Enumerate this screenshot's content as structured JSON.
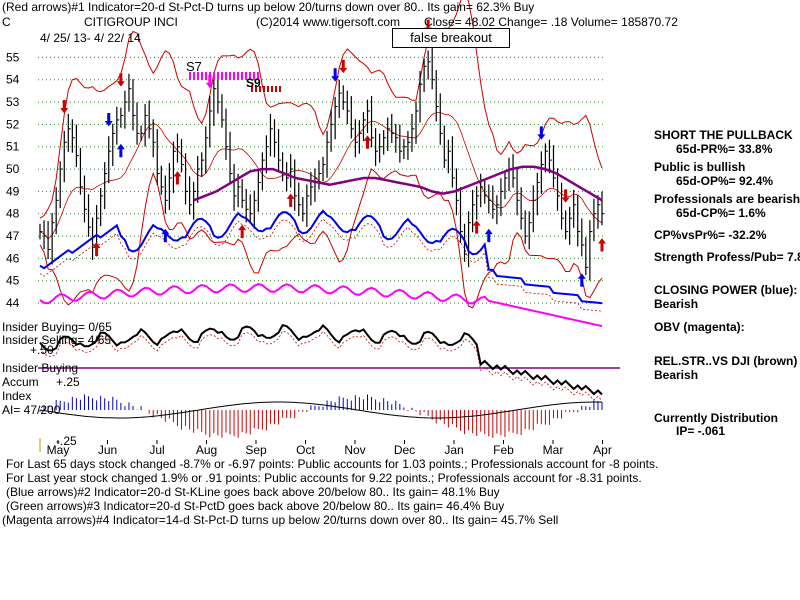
{
  "header": {
    "line1": "(Red arrows)#1 Indicator=20-d St-Pct-D turns up below 20/turns down over 80.. Its gain= 62.3% Buy",
    "symbol": "C",
    "name": "CITIGROUP INCI",
    "copyright": "(C)2014 www.tigersoft.com",
    "quote": "Close= 48.02  Change= .18 Volume= 185870.72",
    "daterange": "4/ 25/ 13-  4/ 22/ 14"
  },
  "annotations": {
    "false_breakout": "false breakout",
    "s7": "S7",
    "s9": "S9",
    "insider_buying_ratio": "Insider Buying= 0/65",
    "insider_selling_ratio": "Insider Selling= 4/65",
    "plus50": "+.50",
    "insider_buying": "Insider Buying",
    "accum": "Accum",
    "plus25": "+.25",
    "index": "Index",
    "ai": "AI= 47/200",
    "minus25": "-.25"
  },
  "sidebar": {
    "l1": "SHORT THE PULLBACK",
    "l2": "65d-PR%= 33.8%",
    "l3": "Public is bullish",
    "l4": "65d-OP%= 92.4%",
    "l5": "Professionals are bearish",
    "l6": "65d-CP%= 1.6%",
    "l7": "CP%vsPr%= -32.2%",
    "l8": "Strength Profess/Pub= 7.8",
    "l9": "CLOSING POWER (blue):",
    "l10": "Bearish",
    "l11": "OBV (magenta):",
    "l12": "REL.STR..VS DJI (brown)",
    "l13": "Bearish",
    "l14": "Currently Distribution",
    "l15": "IP= -.061"
  },
  "footer": {
    "f1": "For Last 65 days stock changed -8.7% or -6.97 points:  Public accounts for  1.03 points.;  Professionals account for -8 points.",
    "f2": "For Last year stock changed  1.9% or  .91 points:  Public accounts for  9.22 points.;  Professionals account for -8.31 points.",
    "f3": "(Blue arrows)#2 Indicator=20-d St-KLine goes back above 20/below 80.. Its gain= 48.1% Buy",
    "f4": "(Green arrows)#3 Indicator=20-d St-PctD goes back above 20/below 80.. Its gain= 46.4% Buy",
    "f5": "(Magenta arrows)#4 Indicator=14-d St-Pct-D turns up below 20/turns down over 80.. Its gain= 45.7% Sell"
  },
  "chart_data": {
    "type": "line",
    "y_ticks": [
      55,
      54,
      53,
      52,
      51,
      50,
      49,
      48,
      47,
      46,
      45,
      44
    ],
    "x_ticks": [
      "May",
      "Jun",
      "Jul",
      "Aug",
      "Sep",
      "Oct",
      "Nov",
      "Dec",
      "Jan",
      "Feb",
      "Mar",
      "Apr"
    ],
    "ylim": [
      43.6,
      55.6
    ],
    "price_close": [
      47.2,
      47.0,
      46.4,
      47.6,
      48.6,
      50.0,
      51.2,
      51.8,
      51.4,
      50.6,
      49.2,
      48.2,
      47.4,
      46.6,
      47.8,
      48.8,
      49.8,
      50.8,
      51.6,
      52.2,
      52.4,
      53.0,
      53.6,
      52.4,
      51.6,
      51.6,
      52.4,
      51.8,
      51.2,
      49.8,
      49.2,
      48.6,
      49.6,
      50.8,
      51.0,
      50.2,
      49.0,
      48.4,
      49.0,
      50.0,
      50.4,
      51.4,
      52.6,
      53.6,
      53.0,
      52.2,
      51.0,
      49.8,
      48.8,
      49.2,
      48.6,
      48.2,
      48.0,
      48.6,
      49.4,
      50.4,
      51.0,
      51.8,
      51.2,
      50.4,
      49.8,
      49.6,
      50.0,
      48.8,
      48.4,
      48.0,
      48.8,
      49.2,
      49.6,
      49.8,
      50.2,
      51.2,
      52.0,
      52.8,
      53.4,
      53.0,
      52.6,
      51.8,
      51.2,
      51.6,
      52.2,
      52.6,
      51.4,
      50.8,
      51.0,
      51.4,
      51.8,
      51.6,
      51.4,
      50.8,
      51.0,
      51.2,
      51.8,
      52.6,
      53.8,
      54.6,
      54.8,
      54.0,
      52.8,
      51.6,
      50.4,
      50.8,
      49.6,
      48.6,
      47.2,
      46.2,
      47.6,
      48.4,
      48.8,
      49.2,
      48.8,
      48.6,
      48.2,
      48.4,
      49.0,
      49.6,
      50.0,
      49.6,
      48.6,
      47.8,
      47.0,
      47.6,
      48.6,
      49.4,
      50.2,
      50.8,
      50.4,
      49.6,
      48.8,
      47.8,
      47.2,
      47.8,
      48.4,
      47.2,
      46.6,
      45.6,
      47.2,
      48.0,
      48.4,
      48.0
    ],
    "overlay_magenta": [
      48.6,
      48.8,
      49.0,
      49.3,
      49.6,
      49.9,
      50.0,
      50.0,
      49.8,
      49.6,
      49.5,
      49.4,
      49.3,
      49.4,
      49.5,
      49.6,
      49.6,
      49.5,
      49.4,
      49.3,
      49.2,
      49.0,
      48.9,
      49.0,
      49.2,
      49.4,
      49.6,
      49.8,
      50.0,
      50.1,
      50.1,
      50.0,
      49.8,
      49.5,
      49.2,
      48.9,
      48.6
    ],
    "series": [
      {
        "name": "CLOSING POWER (blue)",
        "color": "#0000ee"
      },
      {
        "name": "OBV (magenta)",
        "color": "#ff00ff"
      },
      {
        "name": "REL.STR..VS DJI (brown)",
        "color": "#000000"
      }
    ],
    "colors": {
      "price": "#000000",
      "bands": "#cc0000",
      "ma": "#800080",
      "closing_power": "#0000ee",
      "obv": "#ff00ff",
      "accum_pos": "#0000cc",
      "accum_neg": "#cc0000"
    }
  }
}
